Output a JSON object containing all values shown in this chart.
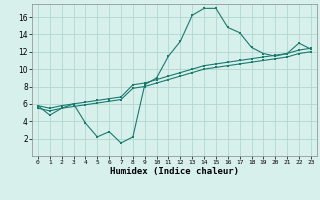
{
  "title": "",
  "xlabel": "Humidex (Indice chaleur)",
  "ylabel": "",
  "background_color": "#d8f0ec",
  "grid_color": "#b0d8d0",
  "line_color": "#1a7a6e",
  "xlim": [
    -0.5,
    23.5
  ],
  "ylim": [
    0,
    17.5
  ],
  "yticks": [
    2,
    4,
    6,
    8,
    10,
    12,
    14,
    16
  ],
  "xticks": [
    0,
    1,
    2,
    3,
    4,
    5,
    6,
    7,
    8,
    9,
    10,
    11,
    12,
    13,
    14,
    15,
    16,
    17,
    18,
    19,
    20,
    21,
    22,
    23
  ],
  "line1_x": [
    0,
    1,
    2,
    3,
    4,
    5,
    6,
    7,
    8,
    9,
    10,
    11,
    12,
    13,
    14,
    15,
    16,
    17,
    18,
    19,
    20,
    21,
    22,
    23
  ],
  "line1_y": [
    5.8,
    4.7,
    5.5,
    6.0,
    3.8,
    2.2,
    2.8,
    1.5,
    2.2,
    8.2,
    9.0,
    11.5,
    13.2,
    16.2,
    17.0,
    17.0,
    14.8,
    14.2,
    12.5,
    11.8,
    11.5,
    11.8,
    13.0,
    12.3
  ],
  "line2_x": [
    0,
    1,
    2,
    3,
    4,
    5,
    6,
    7,
    8,
    9,
    10,
    11,
    12,
    13,
    14,
    15,
    16,
    17,
    18,
    19,
    20,
    21,
    22,
    23
  ],
  "line2_y": [
    5.8,
    5.5,
    5.8,
    6.0,
    6.2,
    6.4,
    6.6,
    6.8,
    8.2,
    8.4,
    8.8,
    9.2,
    9.6,
    10.0,
    10.4,
    10.6,
    10.8,
    11.0,
    11.2,
    11.4,
    11.6,
    11.8,
    12.2,
    12.4
  ],
  "line3_x": [
    0,
    1,
    2,
    3,
    4,
    5,
    6,
    7,
    8,
    9,
    10,
    11,
    12,
    13,
    14,
    15,
    16,
    17,
    18,
    19,
    20,
    21,
    22,
    23
  ],
  "line3_y": [
    5.5,
    5.2,
    5.5,
    5.7,
    5.9,
    6.1,
    6.3,
    6.5,
    7.8,
    8.0,
    8.4,
    8.8,
    9.2,
    9.6,
    10.0,
    10.2,
    10.4,
    10.6,
    10.8,
    11.0,
    11.2,
    11.4,
    11.8,
    12.0
  ]
}
